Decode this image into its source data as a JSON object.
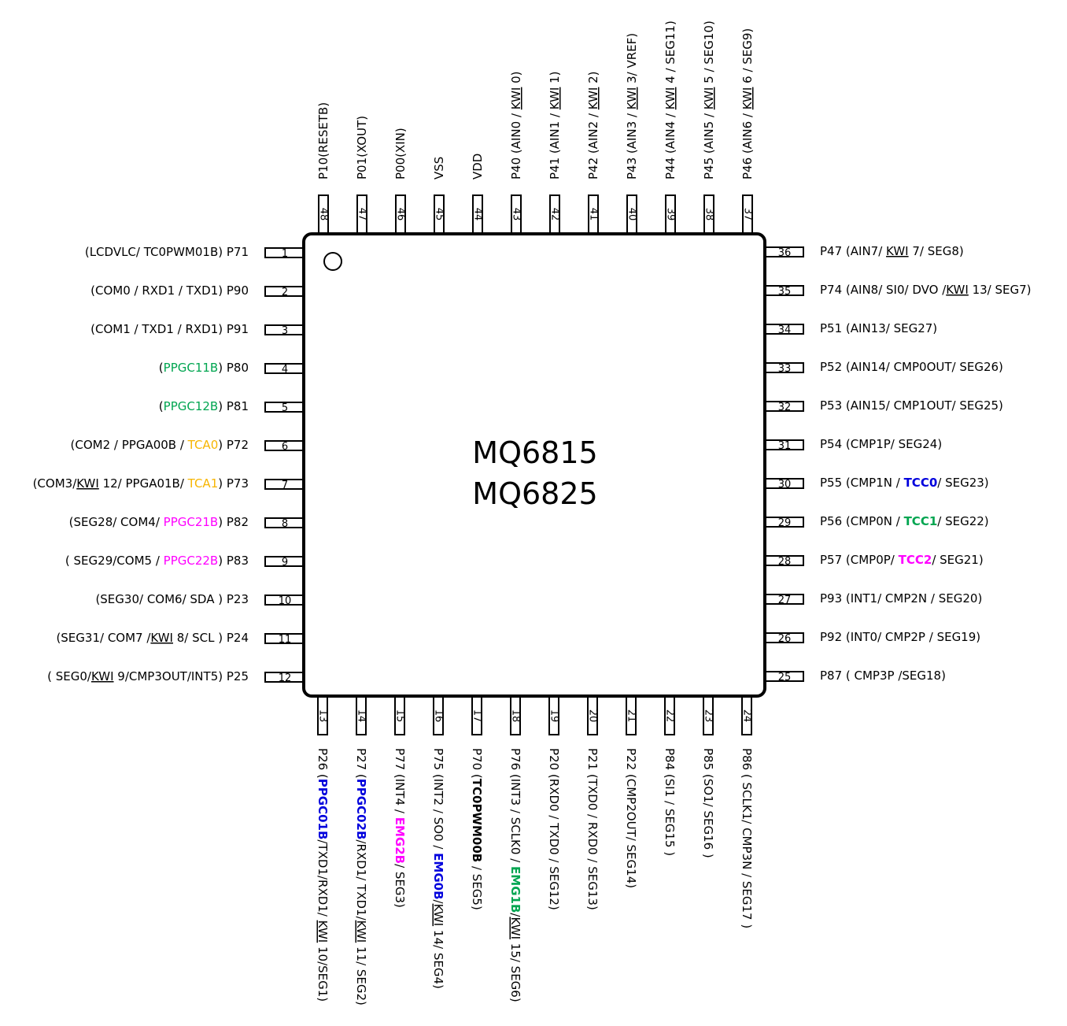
{
  "chip": {
    "titles": [
      "MQ6815",
      "MQ6825"
    ]
  },
  "colors": {
    "k": "#000000",
    "g": "#00a550",
    "o": "#f7b500",
    "m": "#ff00ff",
    "b": "#0000dd"
  },
  "pins": [
    {
      "n": "1",
      "side": "left",
      "segs": [
        {
          "t": "(LCDVLC/ "
        },
        {
          "t": "TC0PWM01B"
        },
        {
          "t": ") P71"
        }
      ]
    },
    {
      "n": "2",
      "side": "left",
      "segs": [
        {
          "t": "(COM0 / RXD1 / TXD1) P90"
        }
      ]
    },
    {
      "n": "3",
      "side": "left",
      "segs": [
        {
          "t": "(COM1 / TXD1 / RXD1) P91"
        }
      ]
    },
    {
      "n": "4",
      "side": "left",
      "segs": [
        {
          "t": "("
        },
        {
          "t": "PPGC11B",
          "c": "g"
        },
        {
          "t": ") P80"
        }
      ]
    },
    {
      "n": "5",
      "side": "left",
      "segs": [
        {
          "t": "("
        },
        {
          "t": "PPGC12B",
          "c": "g"
        },
        {
          "t": ") P81"
        }
      ]
    },
    {
      "n": "6",
      "side": "left",
      "segs": [
        {
          "t": "(COM2 / PPGA00B / "
        },
        {
          "t": "TCA0",
          "c": "o"
        },
        {
          "t": ") P72"
        }
      ]
    },
    {
      "n": "7",
      "side": "left",
      "segs": [
        {
          "t": "(COM3/"
        },
        {
          "t": "KWI",
          "u": true
        },
        {
          "t": " 12/ PPGA01B/ "
        },
        {
          "t": "TCA1",
          "c": "o"
        },
        {
          "t": ") P73"
        }
      ]
    },
    {
      "n": "8",
      "side": "left",
      "segs": [
        {
          "t": "(SEG28/ COM4/ "
        },
        {
          "t": "PPGC21B",
          "c": "m"
        },
        {
          "t": ") P82"
        }
      ]
    },
    {
      "n": "9",
      "side": "left",
      "segs": [
        {
          "t": "( SEG29/COM5 / "
        },
        {
          "t": "PPGC22B",
          "c": "m"
        },
        {
          "t": ") P83"
        }
      ]
    },
    {
      "n": "10",
      "side": "left",
      "segs": [
        {
          "t": "(SEG30/ COM6/ SDA ) P23"
        }
      ]
    },
    {
      "n": "11",
      "side": "left",
      "segs": [
        {
          "t": "(SEG31/ COM7 /"
        },
        {
          "t": "KWI",
          "u": true
        },
        {
          "t": " 8/ SCL ) P24"
        }
      ]
    },
    {
      "n": "12",
      "side": "left",
      "segs": [
        {
          "t": "( SEG0/"
        },
        {
          "t": "KWI",
          "u": true
        },
        {
          "t": " 9/CMP3OUT/INT5) P25"
        }
      ]
    },
    {
      "n": "13",
      "side": "bottom",
      "segs": [
        {
          "t": "P26 ("
        },
        {
          "t": "PPGC01B",
          "c": "b",
          "bold": true
        },
        {
          "t": "/TXD1/RXD1/ "
        },
        {
          "t": "KWI",
          "u": true
        },
        {
          "t": " 10/SEG1)"
        }
      ]
    },
    {
      "n": "14",
      "side": "bottom",
      "segs": [
        {
          "t": "P27 ("
        },
        {
          "t": "PPGC02B",
          "c": "b",
          "bold": true
        },
        {
          "t": "/RXD1/ TXD1/"
        },
        {
          "t": "KWI",
          "u": true
        },
        {
          "t": " 11/ SEG2)"
        }
      ]
    },
    {
      "n": "15",
      "side": "bottom",
      "segs": [
        {
          "t": "P77 (INT4 / "
        },
        {
          "t": "EMG2B",
          "c": "m",
          "bold": true
        },
        {
          "t": "/ SEG3)"
        }
      ]
    },
    {
      "n": "16",
      "side": "bottom",
      "segs": [
        {
          "t": "P75 (INT2 / SO0 / "
        },
        {
          "t": "EMG0B",
          "c": "b",
          "bold": true
        },
        {
          "t": "/"
        },
        {
          "t": "KWI",
          "u": true
        },
        {
          "t": " 14/ SEG4)"
        }
      ]
    },
    {
      "n": "17",
      "side": "bottom",
      "segs": [
        {
          "t": "P70 ("
        },
        {
          "t": "TC0PWM00B",
          "bold": true
        },
        {
          "t": " / SEG5)"
        }
      ]
    },
    {
      "n": "18",
      "side": "bottom",
      "segs": [
        {
          "t": "P76 (INT3 / SCLK0 / "
        },
        {
          "t": "EMG1B",
          "c": "g",
          "bold": true
        },
        {
          "t": "/"
        },
        {
          "t": "KWI",
          "u": true
        },
        {
          "t": " 15/ SEG6)"
        }
      ]
    },
    {
      "n": "19",
      "side": "bottom",
      "segs": [
        {
          "t": "P20 (RXD0 / TXD0 / SEG12)"
        }
      ]
    },
    {
      "n": "20",
      "side": "bottom",
      "segs": [
        {
          "t": "P21 (TXD0 / RXD0 / SEG13)"
        }
      ]
    },
    {
      "n": "21",
      "side": "bottom",
      "segs": [
        {
          "t": "P22 (CMP2OUT/ SEG14)"
        }
      ]
    },
    {
      "n": "22",
      "side": "bottom",
      "segs": [
        {
          "t": "P84 (SI1  / SEG15 )"
        }
      ]
    },
    {
      "n": "23",
      "side": "bottom",
      "segs": [
        {
          "t": "P85 (SO1/ SEG16 )"
        }
      ]
    },
    {
      "n": "24",
      "side": "bottom",
      "segs": [
        {
          "t": "P86 ( SCLK1/ CMP3N / SEG17 )"
        }
      ]
    },
    {
      "n": "25",
      "side": "right",
      "segs": [
        {
          "t": "P87 ( CMP3P /SEG18)"
        }
      ]
    },
    {
      "n": "26",
      "side": "right",
      "segs": [
        {
          "t": "P92 (INT0/ CMP2P / SEG19)"
        }
      ]
    },
    {
      "n": "27",
      "side": "right",
      "segs": [
        {
          "t": "P93 (INT1/ CMP2N / SEG20)"
        }
      ]
    },
    {
      "n": "28",
      "side": "right",
      "segs": [
        {
          "t": "P57 (CMP0P/ "
        },
        {
          "t": "TCC2",
          "c": "m",
          "bold": true
        },
        {
          "t": "/ SEG21)"
        }
      ]
    },
    {
      "n": "29",
      "side": "right",
      "segs": [
        {
          "t": "P56 (CMP0N / "
        },
        {
          "t": "TCC1",
          "c": "g",
          "bold": true
        },
        {
          "t": "/ SEG22)"
        }
      ]
    },
    {
      "n": "30",
      "side": "right",
      "segs": [
        {
          "t": "P55 (CMP1N / "
        },
        {
          "t": "TCC0",
          "c": "b",
          "bold": true
        },
        {
          "t": "/ SEG23)"
        }
      ]
    },
    {
      "n": "31",
      "side": "right",
      "segs": [
        {
          "t": "P54 (CMP1P/ SEG24)"
        }
      ]
    },
    {
      "n": "32",
      "side": "right",
      "segs": [
        {
          "t": "P53 (AIN15/ CMP1OUT/ SEG25)"
        }
      ]
    },
    {
      "n": "33",
      "side": "right",
      "segs": [
        {
          "t": "P52 (AIN14/ CMP0OUT/ SEG26)"
        }
      ]
    },
    {
      "n": "34",
      "side": "right",
      "segs": [
        {
          "t": "P51 (AIN13/ SEG27)"
        }
      ]
    },
    {
      "n": "35",
      "side": "right",
      "segs": [
        {
          "t": "P74 (AIN8/ SI0/ DVO /"
        },
        {
          "t": "KWI",
          "u": true
        },
        {
          "t": " 13/ SEG7)"
        }
      ]
    },
    {
      "n": "36",
      "side": "right",
      "segs": [
        {
          "t": "P47 (AIN7/ "
        },
        {
          "t": "KWI",
          "u": true
        },
        {
          "t": " 7/ SEG8)"
        }
      ]
    },
    {
      "n": "37",
      "side": "top",
      "segs": [
        {
          "t": "P46 (AIN6 / "
        },
        {
          "t": "KWI",
          "u": true
        },
        {
          "t": " 6 / SEG9)"
        }
      ]
    },
    {
      "n": "38",
      "side": "top",
      "segs": [
        {
          "t": "P45 (AIN5 / "
        },
        {
          "t": "KWI",
          "u": true
        },
        {
          "t": " 5 / SEG10)"
        }
      ]
    },
    {
      "n": "39",
      "side": "top",
      "segs": [
        {
          "t": "P44 (AIN4 / "
        },
        {
          "t": "KWI",
          "u": true
        },
        {
          "t": " 4 / SEG11)"
        }
      ]
    },
    {
      "n": "40",
      "side": "top",
      "segs": [
        {
          "t": "P43 (AIN3 / "
        },
        {
          "t": "KWI",
          "u": true
        },
        {
          "t": " 3/ VREF)"
        }
      ]
    },
    {
      "n": "41",
      "side": "top",
      "segs": [
        {
          "t": "P42 (AIN2 / "
        },
        {
          "t": "KWI",
          "u": true
        },
        {
          "t": " 2)"
        }
      ]
    },
    {
      "n": "42",
      "side": "top",
      "segs": [
        {
          "t": "P41 (AIN1 / "
        },
        {
          "t": "KWI",
          "u": true
        },
        {
          "t": " 1)"
        }
      ]
    },
    {
      "n": "43",
      "side": "top",
      "segs": [
        {
          "t": "P40 (AIN0 / "
        },
        {
          "t": "KWI",
          "u": true
        },
        {
          "t": " 0)"
        }
      ]
    },
    {
      "n": "44",
      "side": "top",
      "segs": [
        {
          "t": "VDD"
        }
      ]
    },
    {
      "n": "45",
      "side": "top",
      "segs": [
        {
          "t": "VSS"
        }
      ]
    },
    {
      "n": "46",
      "side": "top",
      "segs": [
        {
          "t": "P00(XIN)"
        }
      ]
    },
    {
      "n": "47",
      "side": "top",
      "segs": [
        {
          "t": "P01(XOUT)"
        }
      ]
    },
    {
      "n": "48",
      "side": "top",
      "segs": [
        {
          "t": "P10(RESETB)"
        }
      ]
    }
  ]
}
